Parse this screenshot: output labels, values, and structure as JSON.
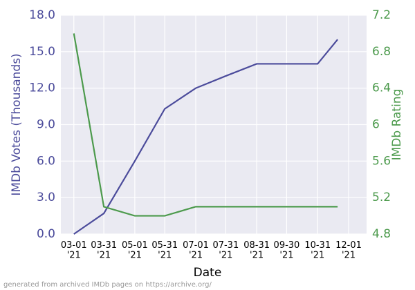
{
  "chart_data": {
    "type": "line",
    "x_label": "Date",
    "y_label": "IMDb Votes (Thousands)",
    "y2_label": "IMDb Rating",
    "footnote": "generated from archived IMDb pages on https://archive.org/",
    "x": [
      "2021-03-01",
      "2021-03-31",
      "2021-05-01",
      "2021-05-31",
      "2021-07-01",
      "2021-07-31",
      "2021-08-31",
      "2021-09-30",
      "2021-10-31",
      "2021-11-20"
    ],
    "series": [
      {
        "name": "IMDb Votes (Thousands)",
        "color": "#4b4b9b",
        "values": [
          0,
          1.7,
          6.0,
          10.3,
          12.0,
          13.0,
          14.0,
          14.0,
          14.0,
          16.0
        ]
      },
      {
        "name": "IMDb Rating",
        "color": "#4c9a4c",
        "axis": "y2",
        "values": [
          7.0,
          5.1,
          5.0,
          5.0,
          5.1,
          5.1,
          5.1,
          5.1,
          5.1,
          5.1
        ]
      }
    ],
    "xlim": [
      "2021-02-16",
      "2021-12-19"
    ],
    "xticks": [
      {
        "value": "2021-03-01",
        "label": "03-01\n'21"
      },
      {
        "value": "2021-03-31",
        "label": "03-31\n'21"
      },
      {
        "value": "2021-05-01",
        "label": "05-01\n'21"
      },
      {
        "value": "2021-05-31",
        "label": "05-31\n'21"
      },
      {
        "value": "2021-07-01",
        "label": "07-01\n'21"
      },
      {
        "value": "2021-07-31",
        "label": "07-31\n'21"
      },
      {
        "value": "2021-08-31",
        "label": "08-31\n'21"
      },
      {
        "value": "2021-09-30",
        "label": "09-30\n'21"
      },
      {
        "value": "2021-10-31",
        "label": "10-31\n'21"
      },
      {
        "value": "2021-12-01",
        "label": "12-01\n'21"
      }
    ],
    "ylim": [
      0,
      18
    ],
    "yticks": [
      {
        "value": 0,
        "label": "0.0"
      },
      {
        "value": 3,
        "label": "3.0"
      },
      {
        "value": 6,
        "label": "6.0"
      },
      {
        "value": 9,
        "label": "9.0"
      },
      {
        "value": 12,
        "label": "12.0"
      },
      {
        "value": 15,
        "label": "15.0"
      },
      {
        "value": 18,
        "label": "18.0"
      }
    ],
    "y2lim": [
      4.8,
      7.2
    ],
    "y2ticks": [
      4.8,
      5.2,
      5.6,
      6.0,
      6.4,
      6.8,
      7.2
    ],
    "grid": true,
    "background": "#eaeaf2"
  }
}
